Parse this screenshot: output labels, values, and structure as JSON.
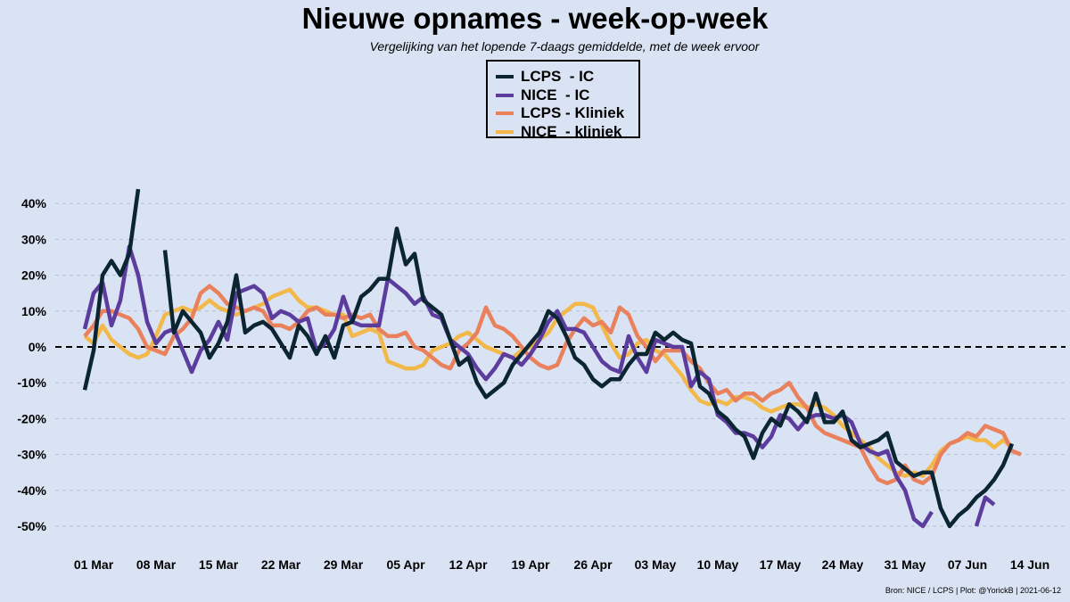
{
  "title": "Nieuwe opnames - week-op-week",
  "subtitle": "Vergelijking van het lopende 7-daags gemiddelde, met de week ervoor",
  "source": "Bron: NICE / LCPS | Plot: @YorickB | 2021-06-12",
  "chart_data": {
    "type": "line",
    "title": "Nieuwe opnames - week-op-week",
    "subtitle": "Vergelijking van het lopende 7-daags gemiddelde, met de week ervoor",
    "xlabel": "",
    "ylabel": "",
    "x_start": "2021-02-28",
    "x_step_days": 1,
    "xlim": [
      "2021-02-26",
      "2021-06-14"
    ],
    "ylim": [
      -60,
      50
    ],
    "ygrid": true,
    "zero_line": "dashed",
    "legend_position": "top-center",
    "x_ticks": [
      "01 Mar",
      "08 Mar",
      "15 Mar",
      "22 Mar",
      "29 Mar",
      "05 Apr",
      "12 Apr",
      "19 Apr",
      "26 Apr",
      "03 May",
      "10 May",
      "17 May",
      "24 May",
      "31 May",
      "07 Jun",
      "14 Jun"
    ],
    "x_tick_dates": [
      "2021-03-01",
      "2021-03-08",
      "2021-03-15",
      "2021-03-22",
      "2021-03-29",
      "2021-04-05",
      "2021-04-12",
      "2021-04-19",
      "2021-04-26",
      "2021-05-03",
      "2021-05-10",
      "2021-05-17",
      "2021-05-24",
      "2021-05-31",
      "2021-06-07",
      "2021-06-14"
    ],
    "y_ticks": [
      40,
      30,
      20,
      10,
      0,
      -10,
      -20,
      -30,
      -40,
      -50
    ],
    "y_tick_labels": [
      "40%",
      "30%",
      "20%",
      "10%",
      "0%",
      "-10%",
      "-20%",
      "-30%",
      "-40%",
      "-50%"
    ],
    "series": [
      {
        "name": "LCPS  - IC",
        "color": "#0b2533",
        "values": [
          -12,
          -1,
          20,
          24,
          20,
          26,
          44,
          null,
          null,
          27,
          4,
          10,
          7,
          4,
          -3,
          1,
          7,
          20,
          4,
          6,
          7,
          5,
          1,
          -3,
          6,
          3,
          -2,
          3,
          -3,
          6,
          7,
          14,
          16,
          19,
          19,
          33,
          23,
          26,
          13,
          11,
          9,
          2,
          -5,
          -3,
          -10,
          -14,
          -12,
          -10,
          -5,
          -2,
          1,
          4,
          10,
          8,
          3,
          -3,
          -5,
          -9,
          -11,
          -9,
          -9,
          -5,
          -2,
          -2,
          4,
          2,
          4,
          2,
          1,
          -11,
          -13,
          -18,
          -20,
          -23,
          -25,
          -31,
          -24,
          -20,
          -22,
          -16,
          -18,
          -21,
          -13,
          -21,
          -21,
          -18,
          -26,
          -28,
          -27,
          -26,
          -24,
          -32,
          -34,
          -36,
          -35,
          -35,
          -45,
          -50,
          -47,
          -45,
          -42,
          -40,
          -37,
          -33,
          -27
        ]
      },
      {
        "name": "NICE  - IC",
        "color": "#5c3d9e",
        "values": [
          5,
          15,
          18,
          6,
          13,
          28,
          20,
          7,
          1,
          4,
          5,
          -1,
          -7,
          -1,
          2,
          7,
          2,
          15,
          16,
          17,
          15,
          8,
          10,
          9,
          7,
          8,
          -1,
          1,
          5,
          14,
          7,
          6,
          6,
          6,
          19,
          17,
          15,
          12,
          14,
          9,
          8,
          2,
          0,
          -2,
          -6,
          -9,
          -6,
          -2,
          -3,
          -5,
          -2,
          2,
          7,
          10,
          5,
          5,
          4,
          0,
          -4,
          -6,
          -7,
          3,
          -3,
          -7,
          2,
          1,
          0,
          0,
          -11,
          -7,
          -9,
          -19,
          -21,
          -24,
          -24,
          -25,
          -28,
          -25,
          -19,
          -20,
          -23,
          -20,
          -19,
          -19,
          -20,
          -19,
          -21,
          -27,
          -29,
          -30,
          -29,
          -36,
          -40,
          -48,
          -50,
          -46,
          null,
          null,
          null,
          null,
          -50,
          -42,
          -44
        ]
      },
      {
        "name": "LCPS - Kliniek",
        "color": "#e8815c",
        "values": [
          3,
          6,
          10,
          10,
          9,
          8,
          5,
          0,
          -1,
          -2,
          3,
          5,
          8,
          15,
          17,
          15,
          12,
          11,
          10,
          11,
          10,
          6,
          6,
          5,
          7,
          10,
          11,
          9,
          9,
          8,
          9,
          8,
          9,
          5,
          3,
          3,
          4,
          0,
          -1,
          -3,
          -5,
          -6,
          -1,
          1,
          4,
          11,
          6,
          5,
          3,
          0,
          -3,
          -5,
          -6,
          -5,
          1,
          5,
          8,
          6,
          7,
          4,
          11,
          9,
          3,
          0,
          -4,
          -1,
          -1,
          -1,
          -4,
          -6,
          -10,
          -13,
          -12,
          -15,
          -13,
          -13,
          -15,
          -13,
          -12,
          -10,
          -14,
          -17,
          -22,
          -24,
          -25,
          -26,
          -27,
          -28,
          -33,
          -37,
          -38,
          -37,
          -33,
          -37,
          -38,
          -36,
          -30,
          -27,
          -26,
          -24,
          -25,
          -22,
          -23,
          -24,
          -29,
          -30
        ]
      },
      {
        "name": "NICE  - kliniek",
        "color": "#f2b84a",
        "values": [
          3,
          1,
          6,
          2,
          0,
          -2,
          -3,
          -2,
          3,
          9,
          10,
          11,
          10,
          11,
          13,
          11,
          10,
          9,
          10,
          11,
          12,
          14,
          15,
          16,
          13,
          11,
          11,
          10,
          9,
          9,
          3,
          4,
          5,
          4,
          -4,
          -5,
          -6,
          -6,
          -5,
          -1,
          0,
          1,
          3,
          4,
          2,
          0,
          -1,
          -2,
          -3,
          -1,
          0,
          2,
          4,
          8,
          10,
          12,
          12,
          11,
          6,
          1,
          -3,
          -2,
          1,
          2,
          -1,
          -2,
          -5,
          -8,
          -12,
          -15,
          -16,
          -15,
          -16,
          -14,
          -14,
          -15,
          -17,
          -18,
          -17,
          -16,
          -16,
          -17,
          -16,
          -17,
          -19,
          -22,
          -24,
          -26,
          -28,
          -31,
          -33,
          -35,
          -36,
          -35,
          -36,
          -33,
          -29,
          -27,
          -26,
          -25,
          -26,
          -26,
          -28,
          -26,
          -28
        ]
      }
    ]
  }
}
